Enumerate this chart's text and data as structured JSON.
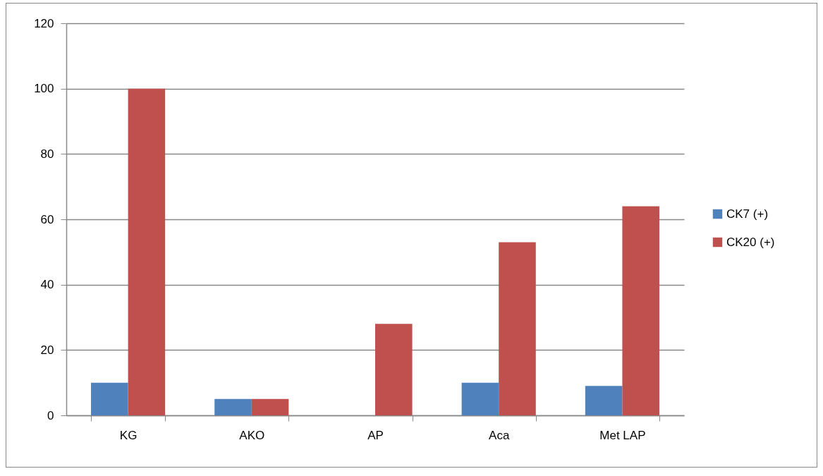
{
  "chart_data": {
    "type": "bar",
    "categories": [
      "KG",
      "AKO",
      "AP",
      "Aca",
      "Met LAP"
    ],
    "series": [
      {
        "name": "CK7 (+)",
        "color": "#4f81bd",
        "values": [
          10,
          5,
          0,
          10,
          9
        ]
      },
      {
        "name": "CK20 (+)",
        "color": "#c0504d",
        "values": [
          100,
          5,
          28,
          53,
          64
        ]
      }
    ],
    "ylim": [
      0,
      120
    ],
    "yticks": [
      0,
      20,
      40,
      60,
      80,
      100,
      120
    ],
    "grid": "y",
    "legend": "right"
  }
}
